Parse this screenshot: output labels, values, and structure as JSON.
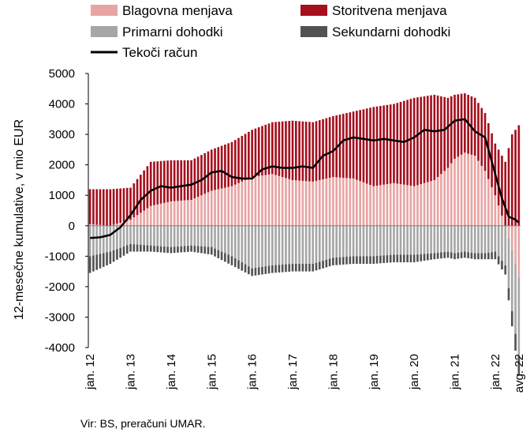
{
  "chart_data": {
    "type": "bar",
    "stacked": true,
    "ylabel": "12-mesečne kumulative, v mio EUR",
    "ylim": [
      -4000,
      5000
    ],
    "yticks": [
      5000,
      4000,
      3000,
      2000,
      1000,
      0,
      -1000,
      -2000,
      -3000,
      -4000
    ],
    "ytick_labels": [
      "5000",
      "4000",
      "3000",
      "2000",
      "1000",
      "0",
      "-1000",
      "-2000",
      "-3000",
      "-4000"
    ],
    "x_labels": [
      {
        "label": "jan. 12",
        "index": 0
      },
      {
        "label": "jan. 13",
        "index": 12
      },
      {
        "label": "jan. 14",
        "index": 24
      },
      {
        "label": "jan. 15",
        "index": 36
      },
      {
        "label": "jan. 16",
        "index": 48
      },
      {
        "label": "jan. 17",
        "index": 60
      },
      {
        "label": "jan. 18",
        "index": 72
      },
      {
        "label": "jan. 19",
        "index": 84
      },
      {
        "label": "jan. 20",
        "index": 96
      },
      {
        "label": "jan. 21",
        "index": 108
      },
      {
        "label": "jan. 22",
        "index": 120
      },
      {
        "label": "avg. 22",
        "index": 127
      }
    ],
    "series": [
      {
        "name": "Blagovna menjava",
        "color": "#e8a3a3",
        "kind": "bar",
        "knots": [
          [
            0,
            50
          ],
          [
            6,
            0
          ],
          [
            12,
            200
          ],
          [
            18,
            650
          ],
          [
            24,
            800
          ],
          [
            30,
            850
          ],
          [
            36,
            1150
          ],
          [
            42,
            1300
          ],
          [
            48,
            1600
          ],
          [
            54,
            1700
          ],
          [
            60,
            1500
          ],
          [
            66,
            1450
          ],
          [
            72,
            1600
          ],
          [
            78,
            1550
          ],
          [
            84,
            1300
          ],
          [
            90,
            1400
          ],
          [
            96,
            1300
          ],
          [
            102,
            1500
          ],
          [
            106,
            1900
          ],
          [
            108,
            2200
          ],
          [
            111,
            2400
          ],
          [
            114,
            2300
          ],
          [
            117,
            1800
          ],
          [
            120,
            1000
          ],
          [
            123,
            0
          ],
          [
            125,
            -800
          ],
          [
            127,
            -1700
          ]
        ]
      },
      {
        "name": "Storitvena menjava",
        "color": "#a50f1e",
        "kind": "bar",
        "knots": [
          [
            0,
            1150
          ],
          [
            6,
            1200
          ],
          [
            12,
            1050
          ],
          [
            18,
            1450
          ],
          [
            24,
            1350
          ],
          [
            30,
            1300
          ],
          [
            36,
            1350
          ],
          [
            42,
            1450
          ],
          [
            48,
            1550
          ],
          [
            54,
            1700
          ],
          [
            60,
            1950
          ],
          [
            66,
            1950
          ],
          [
            72,
            2000
          ],
          [
            78,
            2200
          ],
          [
            84,
            2600
          ],
          [
            90,
            2600
          ],
          [
            96,
            2900
          ],
          [
            102,
            2800
          ],
          [
            106,
            2300
          ],
          [
            108,
            2100
          ],
          [
            111,
            1950
          ],
          [
            114,
            1900
          ],
          [
            117,
            1900
          ],
          [
            120,
            1700
          ],
          [
            123,
            2100
          ],
          [
            125,
            3000
          ],
          [
            127,
            3300
          ]
        ]
      },
      {
        "name": "Primarni dohodki",
        "color": "#a6a6a6",
        "kind": "bar",
        "knots": [
          [
            0,
            -1000
          ],
          [
            6,
            -850
          ],
          [
            12,
            -600
          ],
          [
            18,
            -650
          ],
          [
            24,
            -700
          ],
          [
            30,
            -650
          ],
          [
            36,
            -700
          ],
          [
            42,
            -1000
          ],
          [
            48,
            -1400
          ],
          [
            54,
            -1300
          ],
          [
            60,
            -1250
          ],
          [
            66,
            -1250
          ],
          [
            72,
            -1050
          ],
          [
            78,
            -1000
          ],
          [
            84,
            -1000
          ],
          [
            90,
            -950
          ],
          [
            96,
            -950
          ],
          [
            102,
            -900
          ],
          [
            106,
            -850
          ],
          [
            108,
            -900
          ],
          [
            111,
            -850
          ],
          [
            114,
            -900
          ],
          [
            117,
            -900
          ],
          [
            120,
            -850
          ],
          [
            123,
            -1300
          ],
          [
            125,
            -2000
          ],
          [
            127,
            -2600
          ]
        ]
      },
      {
        "name": "Sekundarni dohodki",
        "color": "#525252",
        "kind": "bar",
        "knots": [
          [
            0,
            -550
          ],
          [
            6,
            -400
          ],
          [
            12,
            -250
          ],
          [
            18,
            -200
          ],
          [
            24,
            -200
          ],
          [
            30,
            -200
          ],
          [
            36,
            -250
          ],
          [
            42,
            -300
          ],
          [
            48,
            -250
          ],
          [
            54,
            -250
          ],
          [
            60,
            -250
          ],
          [
            66,
            -250
          ],
          [
            72,
            -250
          ],
          [
            78,
            -250
          ],
          [
            84,
            -250
          ],
          [
            90,
            -250
          ],
          [
            96,
            -250
          ],
          [
            102,
            -200
          ],
          [
            106,
            -200
          ],
          [
            108,
            -200
          ],
          [
            111,
            -200
          ],
          [
            114,
            -200
          ],
          [
            117,
            -200
          ],
          [
            120,
            -250
          ],
          [
            123,
            -300
          ],
          [
            125,
            -500
          ],
          [
            127,
            -600
          ]
        ]
      },
      {
        "name": "Tekoči račun",
        "color": "#000000",
        "kind": "line",
        "knots": [
          [
            0,
            -400
          ],
          [
            3,
            -380
          ],
          [
            6,
            -300
          ],
          [
            9,
            -50
          ],
          [
            12,
            350
          ],
          [
            15,
            850
          ],
          [
            18,
            1150
          ],
          [
            21,
            1300
          ],
          [
            24,
            1250
          ],
          [
            27,
            1300
          ],
          [
            30,
            1350
          ],
          [
            33,
            1500
          ],
          [
            36,
            1750
          ],
          [
            39,
            1800
          ],
          [
            42,
            1600
          ],
          [
            45,
            1550
          ],
          [
            48,
            1550
          ],
          [
            51,
            1850
          ],
          [
            54,
            1950
          ],
          [
            57,
            1900
          ],
          [
            60,
            1900
          ],
          [
            63,
            1950
          ],
          [
            66,
            1900
          ],
          [
            69,
            2300
          ],
          [
            72,
            2450
          ],
          [
            75,
            2800
          ],
          [
            78,
            2900
          ],
          [
            81,
            2850
          ],
          [
            84,
            2800
          ],
          [
            87,
            2850
          ],
          [
            90,
            2800
          ],
          [
            93,
            2750
          ],
          [
            96,
            2900
          ],
          [
            99,
            3150
          ],
          [
            102,
            3100
          ],
          [
            105,
            3150
          ],
          [
            108,
            3450
          ],
          [
            111,
            3500
          ],
          [
            114,
            3100
          ],
          [
            117,
            2900
          ],
          [
            120,
            1700
          ],
          [
            122,
            900
          ],
          [
            124,
            300
          ],
          [
            126,
            200
          ],
          [
            127,
            100
          ]
        ]
      }
    ],
    "n_months": 128
  },
  "legend": [
    {
      "label": "Blagovna menjava",
      "color": "#e8a3a3",
      "kind": "box"
    },
    {
      "label": "Storitvena menjava",
      "color": "#a50f1e",
      "kind": "box"
    },
    {
      "label": "Primarni dohodki",
      "color": "#a6a6a6",
      "kind": "box"
    },
    {
      "label": "Sekundarni dohodki",
      "color": "#525252",
      "kind": "box"
    },
    {
      "label": "Tekoči račun",
      "color": "#000000",
      "kind": "line"
    }
  ],
  "source": "Vir: BS, preračuni UMAR."
}
